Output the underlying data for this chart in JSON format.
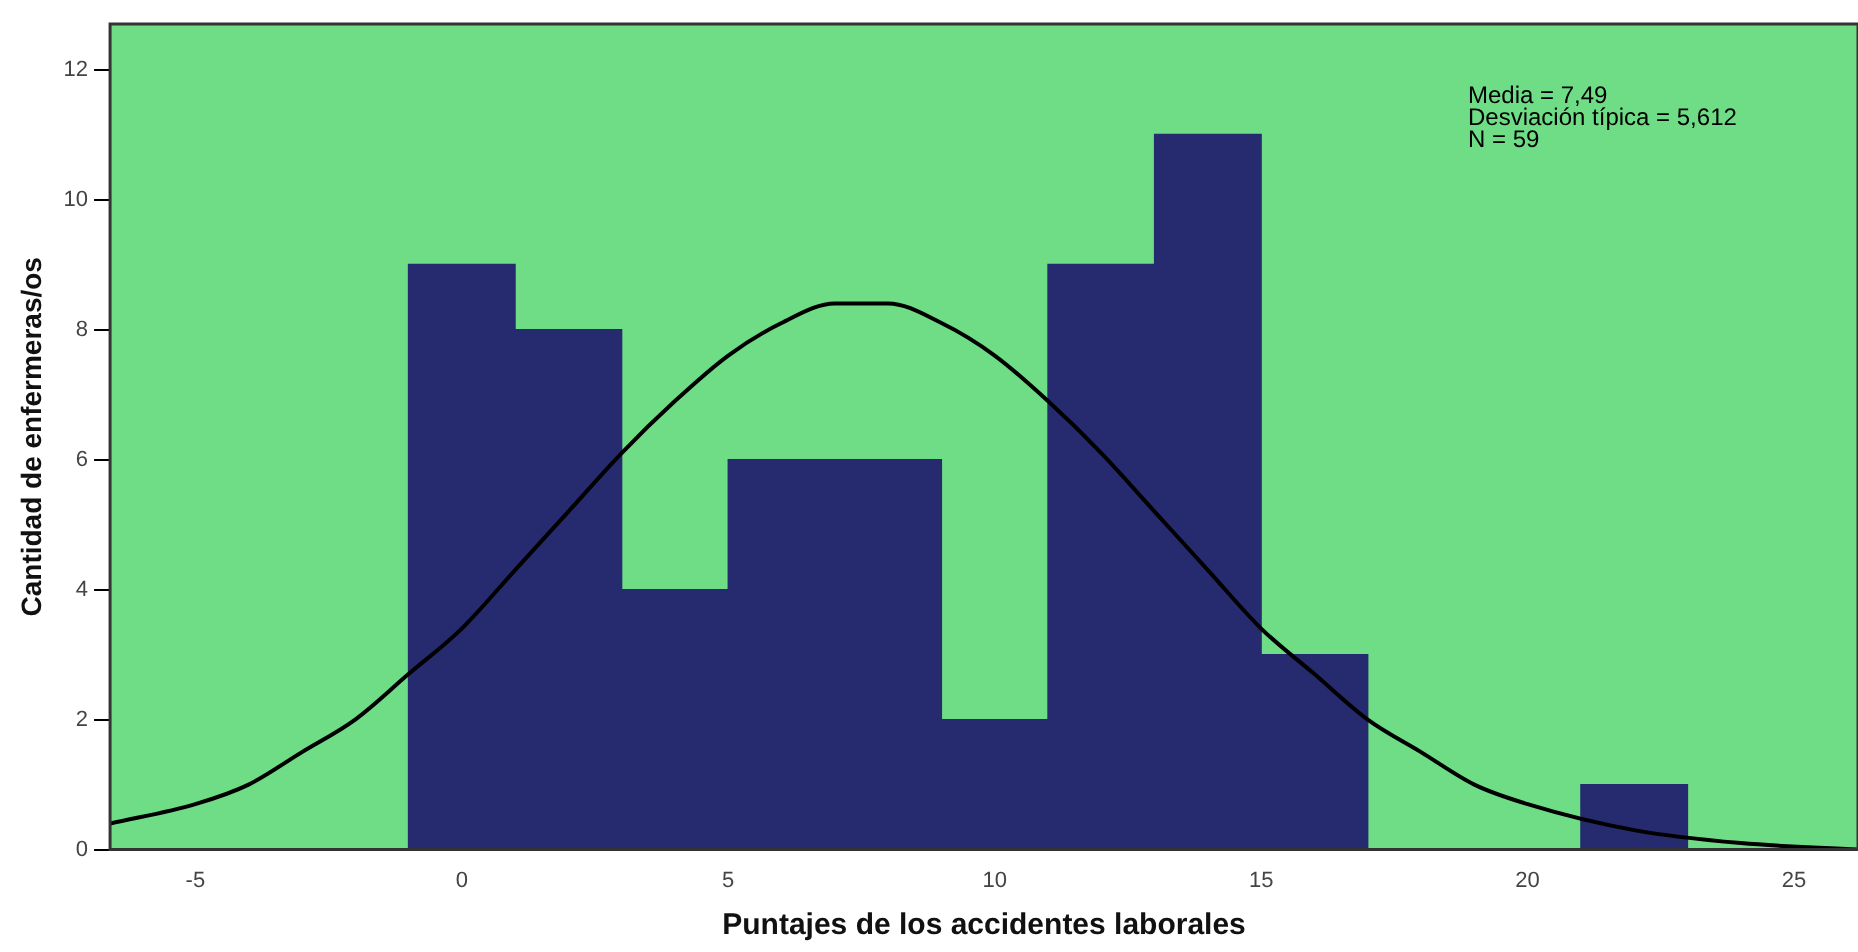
{
  "chart_data": {
    "type": "histogram",
    "xlabel": "Puntajes de los accidentes laborales",
    "ylabel": "Cantidad de enfermeras/os",
    "annotations": [
      "Media = 7,49",
      "Desviación típica = 5,612",
      "N = 59"
    ],
    "bins": [
      -1,
      1,
      3,
      5,
      7,
      9,
      11,
      13,
      15,
      17,
      19,
      21,
      23
    ],
    "values": [
      9,
      8,
      4,
      6,
      6,
      2,
      9,
      11,
      3,
      0,
      0,
      1
    ],
    "color": "#262a6e",
    "series": [
      {
        "type": "line",
        "color": "#000000",
        "x": [
          -6.6,
          -5,
          -4,
          -3,
          -2,
          -1,
          0,
          1,
          2,
          3,
          4,
          5,
          6,
          7,
          7.5,
          8,
          9,
          10,
          11,
          12,
          13,
          14,
          15,
          16,
          17,
          18,
          19,
          20,
          22,
          24,
          26.2
        ],
        "values": [
          0.4,
          0.7,
          1.0,
          1.5,
          2.0,
          2.7,
          3.4,
          4.3,
          5.2,
          6.1,
          6.9,
          7.6,
          8.1,
          8.4,
          8.4,
          8.4,
          8.1,
          7.6,
          6.9,
          6.1,
          5.2,
          4.3,
          3.4,
          2.7,
          2.0,
          1.5,
          1.0,
          0.7,
          0.3,
          0.1,
          0.0
        ]
      }
    ],
    "xlim": [
      -6.6,
      26.2
    ],
    "xticks": [
      -5,
      0,
      5,
      10,
      15,
      20,
      25
    ],
    "ylim": [
      0,
      12.7
    ],
    "yticks": [
      0,
      2,
      4,
      6,
      8,
      10,
      12
    ],
    "grid": false,
    "legend": false
  }
}
